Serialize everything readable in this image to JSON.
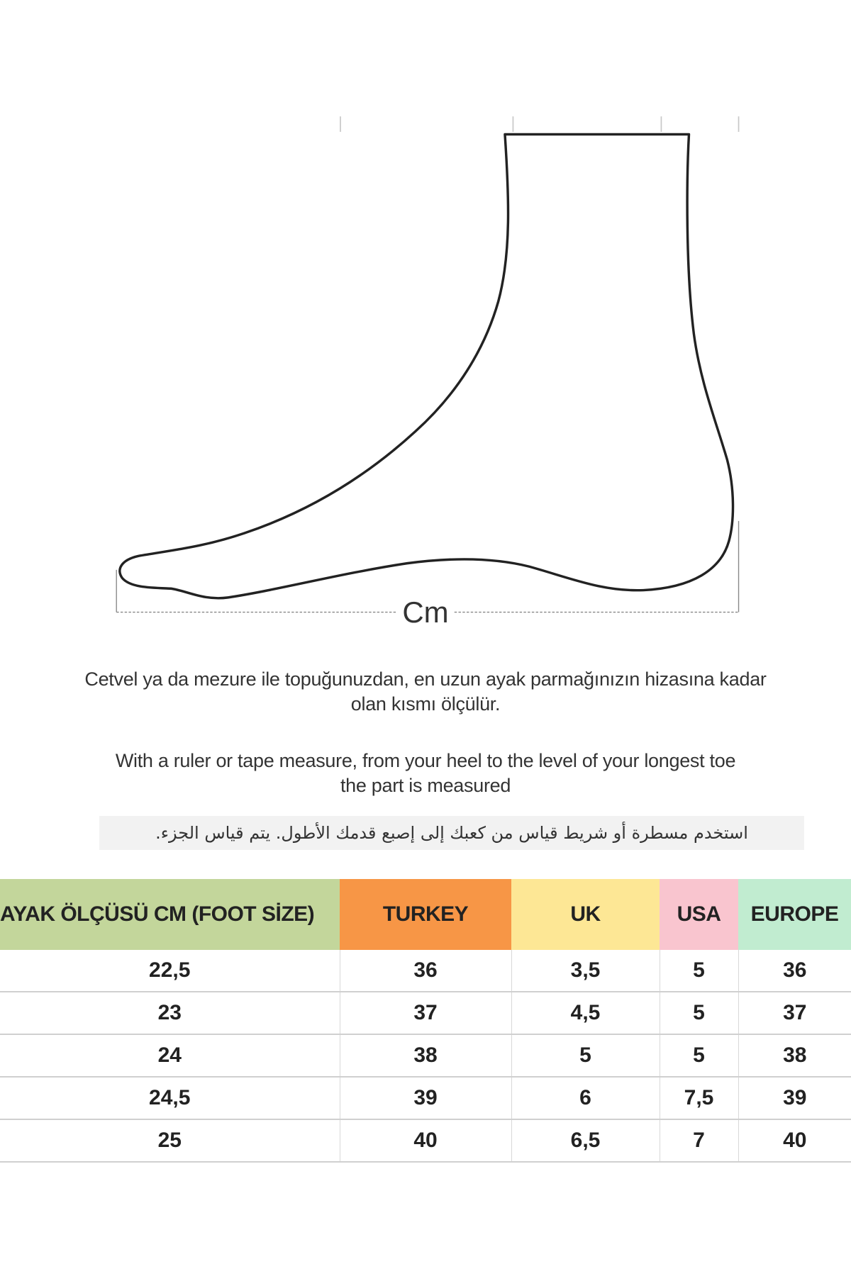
{
  "diagram": {
    "unit_label": "Cm"
  },
  "instructions": {
    "turkish_line1": "Cetvel ya da mezure ile topuğunuzdan, en uzun ayak parmağınızın hizasına kadar",
    "turkish_line2": "olan kısmı ölçülür.",
    "english_line1": "With a ruler or tape measure, from your heel to the level of your longest toe",
    "english_line2": "the part is measured",
    "arabic": "استخدم مسطرة أو شريط قياس من كعبك إلى إصبع قدمك الأطول. يتم قياس الجزء."
  },
  "table": {
    "headers": [
      {
        "label": "AYAK ÖLÇÜSÜ CM (FOOT SİZE)",
        "color": "#c3d69b"
      },
      {
        "label": "TURKEY",
        "color": "#f79646"
      },
      {
        "label": "UK",
        "color": "#fde795"
      },
      {
        "label": "USA",
        "color": "#f9c5cf"
      },
      {
        "label": "EUROPE",
        "color": "#c1ecd0"
      }
    ],
    "rows": [
      [
        "22,5",
        "36",
        "3,5",
        "5",
        "36"
      ],
      [
        "23",
        "37",
        "4,5",
        "5",
        "37"
      ],
      [
        "24",
        "38",
        "5",
        "5",
        "38"
      ],
      [
        "24,5",
        "39",
        "6",
        "7,5",
        "39"
      ],
      [
        "25",
        "40",
        "6,5",
        "7",
        "40"
      ]
    ]
  }
}
